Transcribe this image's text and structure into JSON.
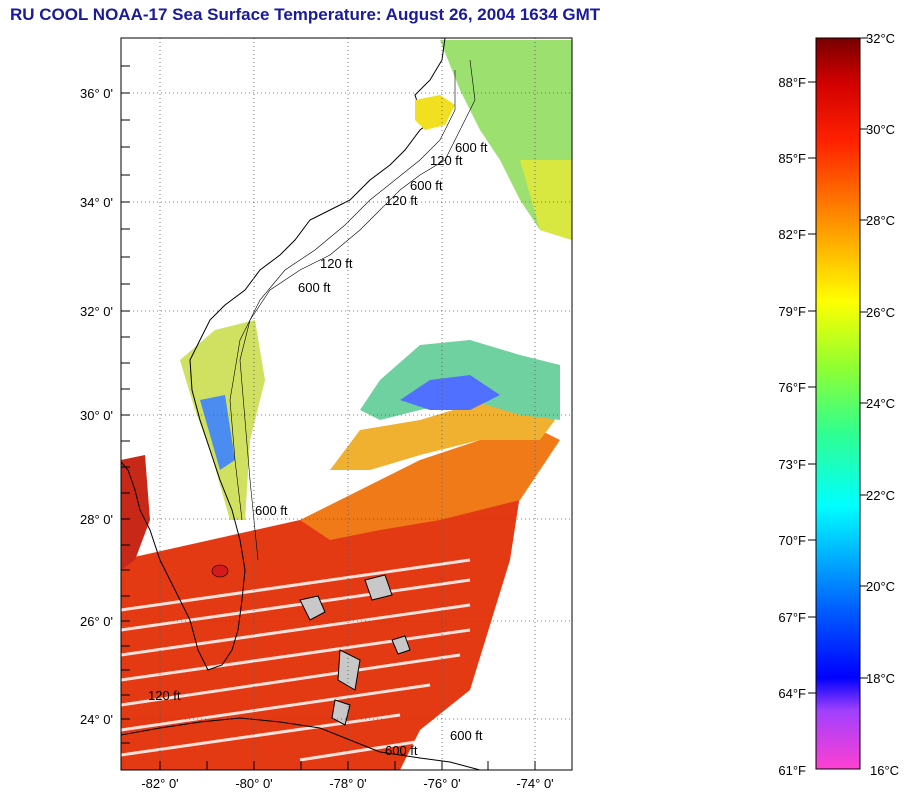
{
  "title": "RU COOL  NOAA-17  Sea Surface Temperature:  August 26, 2004 1634 GMT",
  "map": {
    "lat_labels": [
      "36° 0'",
      "34° 0'",
      "32° 0'",
      "30° 0'",
      "28° 0'",
      "26° 0'",
      "24° 0'"
    ],
    "lon_labels": [
      "-82° 0'",
      "-80° 0'",
      "-78° 0'",
      "-76° 0'",
      "-74° 0'"
    ],
    "isobath_labels": [
      "120 ft",
      "600 ft",
      "120 ft",
      "600 ft",
      "600 ft",
      "120 ft",
      "600 ft",
      "120 ft",
      "600 ft",
      "600 ft"
    ],
    "colors": {
      "land": "#c8c8c8",
      "ocean_cloud": "#ffffff",
      "border": "#000000"
    }
  },
  "colorbar": {
    "fahrenheit_labels": [
      "88°F",
      "85°F",
      "82°F",
      "79°F",
      "76°F",
      "73°F",
      "70°F",
      "67°F",
      "64°F",
      "61°F"
    ],
    "celsius_labels": [
      "32°C",
      "30°C",
      "28°C",
      "26°C",
      "24°C",
      "22°C",
      "20°C",
      "18°C",
      "16°C"
    ],
    "range_c": [
      16,
      32
    ],
    "stops": [
      "#ff3fd0",
      "#a040ff",
      "#0000ff",
      "#00a8ff",
      "#00ffff",
      "#40ff80",
      "#c8ff20",
      "#ffff00",
      "#ff9000",
      "#ff3000",
      "#e00000",
      "#7a0000"
    ]
  }
}
